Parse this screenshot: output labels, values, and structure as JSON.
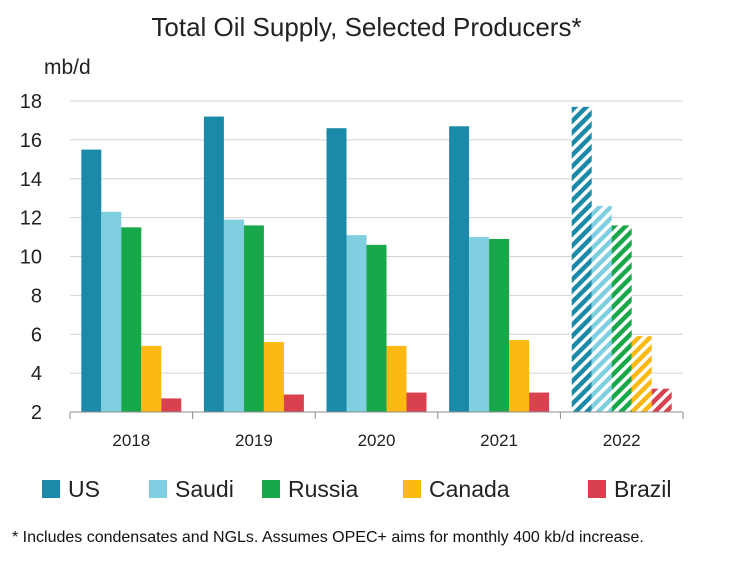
{
  "chart_data": {
    "type": "bar",
    "title": "Total Oil Supply, Selected Producers*",
    "ylabel": "mb/d",
    "xlabel": "",
    "categories": [
      "2018",
      "2019",
      "2020",
      "2021",
      "2022"
    ],
    "y_ticks": [
      "2",
      "4",
      "6",
      "8",
      "10",
      "12",
      "14",
      "16",
      "18"
    ],
    "ylim": [
      2,
      18
    ],
    "grid": true,
    "legend_position": "bottom",
    "hatched_categories": [
      "2022"
    ],
    "series": [
      {
        "name": "US",
        "color": "#1a8aa8",
        "values": [
          15.5,
          17.2,
          16.6,
          16.7,
          17.7
        ]
      },
      {
        "name": "Saudi",
        "color": "#7fcfe0",
        "values": [
          12.3,
          11.9,
          11.1,
          11.0,
          12.6
        ]
      },
      {
        "name": "Russia",
        "color": "#18a84a",
        "values": [
          11.5,
          11.6,
          10.6,
          10.9,
          11.6
        ]
      },
      {
        "name": "Canada",
        "color": "#fdb913",
        "values": [
          5.4,
          5.6,
          5.4,
          5.7,
          5.9
        ]
      },
      {
        "name": "Brazil",
        "color": "#d9414f",
        "values": [
          2.7,
          2.9,
          3.0,
          3.0,
          3.2
        ]
      }
    ],
    "footnote": "* Includes condensates and NGLs.  Assumes OPEC+ aims for monthly 400 kb/d increase."
  }
}
